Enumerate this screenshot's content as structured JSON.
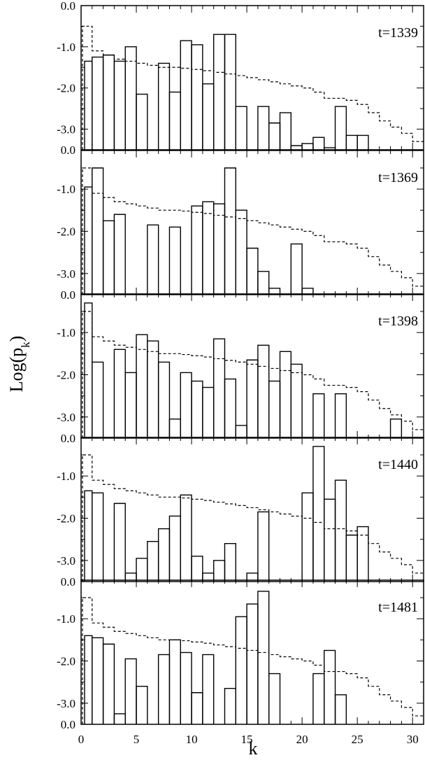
{
  "chart_data": {
    "type": "histogram-panels",
    "xlabel": "k",
    "ylabel_base": "Log(p",
    "ylabel_sub": "k",
    "ylabel_end": ")",
    "xlim": [
      0,
      31
    ],
    "ylim": [
      -3.5,
      0.0
    ],
    "x_ticks": [
      0,
      5,
      10,
      15,
      20,
      25,
      30
    ],
    "x_tick_labels": [
      "0",
      "5",
      "10",
      "15",
      "20",
      "25",
      "30"
    ],
    "y_ticks": [
      0,
      -1,
      -2,
      -3
    ],
    "top_y_tick_labels": [
      "0.0",
      "-1.0",
      "-2.0",
      "-3.0"
    ],
    "y_tick_labels": [
      "-1.0",
      "-2.0",
      "-3.0"
    ],
    "bottom_label": "0.0",
    "reference_series": {
      "name": "",
      "style": "dashed",
      "x": [
        0,
        1,
        2,
        3,
        4,
        5,
        6,
        7,
        8,
        9,
        10,
        11,
        12,
        13,
        14,
        15,
        16,
        17,
        18,
        19,
        20,
        21,
        22,
        23,
        24,
        25,
        26,
        27,
        28,
        29,
        30
      ],
      "values": [
        -0.5,
        -1.1,
        -1.2,
        -1.3,
        -1.35,
        -1.4,
        -1.45,
        -1.5,
        -1.5,
        -1.52,
        -1.55,
        -1.58,
        -1.62,
        -1.66,
        -1.7,
        -1.75,
        -1.8,
        -1.85,
        -1.9,
        -1.95,
        -2.0,
        -2.1,
        -2.25,
        -2.25,
        -2.3,
        -2.4,
        -2.6,
        -2.8,
        -2.95,
        -3.1,
        -3.3
      ]
    },
    "panels": [
      {
        "label": "t=1339",
        "x": [
          0,
          1,
          2,
          3,
          4,
          5,
          6,
          7,
          8,
          9,
          10,
          11,
          12,
          13,
          14,
          15,
          16,
          17,
          18,
          19,
          20,
          21,
          22,
          23,
          24,
          25,
          26,
          27,
          28,
          29,
          30
        ],
        "values": [
          -1.35,
          -1.25,
          -1.2,
          -1.35,
          -1.0,
          -2.15,
          null,
          -1.4,
          -2.1,
          -0.85,
          -0.95,
          -1.9,
          -0.7,
          -0.7,
          -2.45,
          null,
          -2.45,
          -2.85,
          -2.6,
          -3.4,
          -3.35,
          -3.2,
          -3.45,
          -2.45,
          -3.15,
          -3.15,
          null,
          null,
          null,
          null,
          null
        ]
      },
      {
        "label": "t=1369",
        "x": [
          0,
          1,
          2,
          3,
          4,
          5,
          6,
          7,
          8,
          9,
          10,
          11,
          12,
          13,
          14,
          15,
          16,
          17,
          18,
          19,
          20,
          21,
          22,
          23,
          24,
          25,
          26,
          27,
          28,
          29,
          30
        ],
        "values": [
          -0.95,
          -0.5,
          -1.75,
          -1.6,
          null,
          null,
          -1.85,
          null,
          -1.9,
          null,
          -1.4,
          -1.3,
          -1.35,
          -0.5,
          -1.5,
          -2.4,
          -2.95,
          -3.35,
          null,
          -2.3,
          -3.35,
          null,
          null,
          null,
          null,
          null,
          null,
          null,
          null,
          null,
          null
        ]
      },
      {
        "label": "t=1398",
        "x": [
          0,
          1,
          2,
          3,
          4,
          5,
          6,
          7,
          8,
          9,
          10,
          11,
          12,
          13,
          14,
          15,
          16,
          17,
          18,
          19,
          20,
          21,
          22,
          23,
          24,
          25,
          26,
          27,
          28,
          29,
          30
        ],
        "values": [
          -0.3,
          -1.7,
          null,
          -1.4,
          -1.95,
          -1.05,
          -1.2,
          -1.7,
          -3.05,
          -1.95,
          -2.15,
          -2.3,
          -1.15,
          -2.1,
          -3.2,
          -1.65,
          -1.3,
          -2.15,
          -1.45,
          -1.75,
          null,
          -2.45,
          null,
          -2.45,
          null,
          null,
          null,
          null,
          -3.05,
          null,
          null
        ]
      },
      {
        "label": "t=1440",
        "x": [
          0,
          1,
          2,
          3,
          4,
          5,
          6,
          7,
          8,
          9,
          10,
          11,
          12,
          13,
          14,
          15,
          16,
          17,
          18,
          19,
          20,
          21,
          22,
          23,
          24,
          25,
          26,
          27,
          28,
          29,
          30
        ],
        "values": [
          -1.35,
          -1.4,
          null,
          -1.65,
          -3.3,
          -2.95,
          -2.55,
          -2.25,
          -1.95,
          -1.45,
          -2.9,
          -3.3,
          -3.0,
          -2.6,
          null,
          -3.3,
          -1.85,
          null,
          null,
          null,
          -1.4,
          -0.3,
          -1.55,
          -1.1,
          -2.4,
          -2.2,
          null,
          null,
          null,
          null,
          null
        ]
      },
      {
        "label": "t=1481",
        "x": [
          0,
          1,
          2,
          3,
          4,
          5,
          6,
          7,
          8,
          9,
          10,
          11,
          12,
          13,
          14,
          15,
          16,
          17,
          18,
          19,
          20,
          21,
          22,
          23,
          24,
          25,
          26,
          27,
          28,
          29,
          30
        ],
        "values": [
          -1.4,
          -1.45,
          -1.6,
          -3.25,
          -1.95,
          -2.6,
          null,
          -1.85,
          -1.5,
          -1.8,
          -2.75,
          -1.85,
          null,
          -2.65,
          -0.95,
          -0.65,
          -0.35,
          -2.3,
          null,
          null,
          null,
          -2.3,
          -1.75,
          -2.8,
          null,
          null,
          null,
          null,
          null,
          null,
          null
        ]
      }
    ]
  }
}
